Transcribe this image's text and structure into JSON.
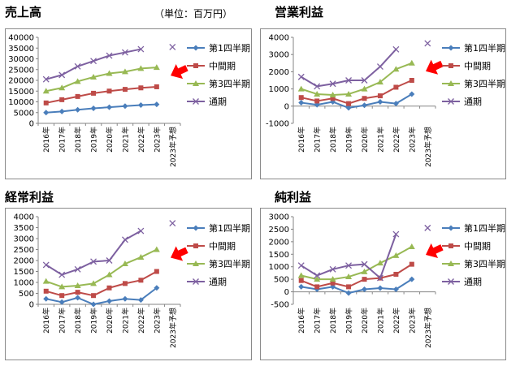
{
  "unit_note": "（単位：百万円）",
  "legend_labels": [
    "第1四半期",
    "中間期",
    "第3四半期",
    "通期"
  ],
  "series_colors": {
    "q1": "#4A7EBB",
    "half": "#BE4B48",
    "q3": "#98B954",
    "annual": "#7D60A0",
    "arrow": "#FF0000"
  },
  "chart_data": [
    {
      "type": "line",
      "title": "売上高",
      "categories": [
        "2016年",
        "2017年",
        "2018年",
        "2019年",
        "2020年",
        "2021年",
        "2022年",
        "2023年",
        "2023年予想"
      ],
      "ylim": [
        0,
        40000
      ],
      "ytick_step": 5000,
      "yticks": [
        "0",
        "5000",
        "10000",
        "15000",
        "20000",
        "25000",
        "30000",
        "35000",
        "40000"
      ],
      "series": [
        {
          "name": "第1四半期",
          "values": [
            5000,
            5500,
            6300,
            7000,
            7500,
            8000,
            8500,
            8800,
            null
          ]
        },
        {
          "name": "中間期",
          "values": [
            9500,
            11000,
            12500,
            14000,
            15000,
            15800,
            16500,
            17000,
            null
          ]
        },
        {
          "name": "第3四半期",
          "values": [
            15000,
            16500,
            19500,
            21500,
            23200,
            24000,
            25500,
            26000,
            null
          ]
        },
        {
          "name": "通期",
          "values": [
            20500,
            22500,
            26500,
            29000,
            31500,
            33000,
            34500,
            null,
            35500
          ]
        }
      ]
    },
    {
      "type": "line",
      "title": "営業利益",
      "categories": [
        "2016年",
        "2017年",
        "2018年",
        "2019年",
        "2020年",
        "2021年",
        "2022年",
        "2023年",
        "2023年予想"
      ],
      "ylim": [
        -1000,
        4000
      ],
      "ytick_step": 1000,
      "yticks": [
        "-1000",
        "0",
        "1000",
        "2000",
        "3000",
        "4000"
      ],
      "series": [
        {
          "name": "第1四半期",
          "values": [
            200,
            80,
            250,
            -100,
            50,
            250,
            150,
            700,
            null
          ]
        },
        {
          "name": "中間期",
          "values": [
            500,
            300,
            450,
            150,
            450,
            600,
            1100,
            1500,
            null
          ]
        },
        {
          "name": "第3四半期",
          "values": [
            1000,
            700,
            650,
            700,
            1000,
            1400,
            2150,
            2500,
            null
          ]
        },
        {
          "name": "通期",
          "values": [
            1700,
            1150,
            1300,
            1500,
            1500,
            2300,
            3300,
            null,
            3650
          ]
        }
      ]
    },
    {
      "type": "line",
      "title": "経常利益",
      "categories": [
        "2016年",
        "2017年",
        "2018年",
        "2019年",
        "2020年",
        "2021年",
        "2022年",
        "2023年",
        "2023年予想"
      ],
      "ylim": [
        0,
        4000
      ],
      "ytick_step": 500,
      "yticks": [
        "0",
        "500",
        "1000",
        "1500",
        "2000",
        "2500",
        "3000",
        "3500",
        "4000"
      ],
      "series": [
        {
          "name": "第1四半期",
          "values": [
            250,
            100,
            300,
            0,
            150,
            250,
            200,
            750,
            null
          ]
        },
        {
          "name": "中間期",
          "values": [
            600,
            400,
            550,
            400,
            750,
            950,
            1100,
            1500,
            null
          ]
        },
        {
          "name": "第3四半期",
          "values": [
            1050,
            800,
            850,
            950,
            1350,
            1850,
            2150,
            2500,
            null
          ]
        },
        {
          "name": "通期",
          "values": [
            1800,
            1350,
            1600,
            1950,
            2000,
            2950,
            3350,
            null,
            3700
          ]
        }
      ]
    },
    {
      "type": "line",
      "title": "純利益",
      "categories": [
        "2016年",
        "2017年",
        "2018年",
        "2019年",
        "2020年",
        "2021年",
        "2022年",
        "2023年",
        "2023年予想"
      ],
      "ylim": [
        -500,
        3000
      ],
      "ytick_step": 500,
      "yticks": [
        "-500",
        "0",
        "500",
        "1000",
        "1500",
        "2000",
        "2500",
        "3000"
      ],
      "series": [
        {
          "name": "第1四半期",
          "values": [
            200,
            100,
            200,
            -50,
            100,
            150,
            100,
            500,
            null
          ]
        },
        {
          "name": "中間期",
          "values": [
            450,
            200,
            350,
            200,
            500,
            550,
            700,
            1100,
            null
          ]
        },
        {
          "name": "第3四半期",
          "values": [
            650,
            500,
            500,
            600,
            800,
            1150,
            1450,
            1800,
            null
          ]
        },
        {
          "name": "通期",
          "values": [
            1050,
            650,
            900,
            1050,
            1100,
            550,
            2300,
            null,
            2550
          ]
        }
      ]
    }
  ]
}
